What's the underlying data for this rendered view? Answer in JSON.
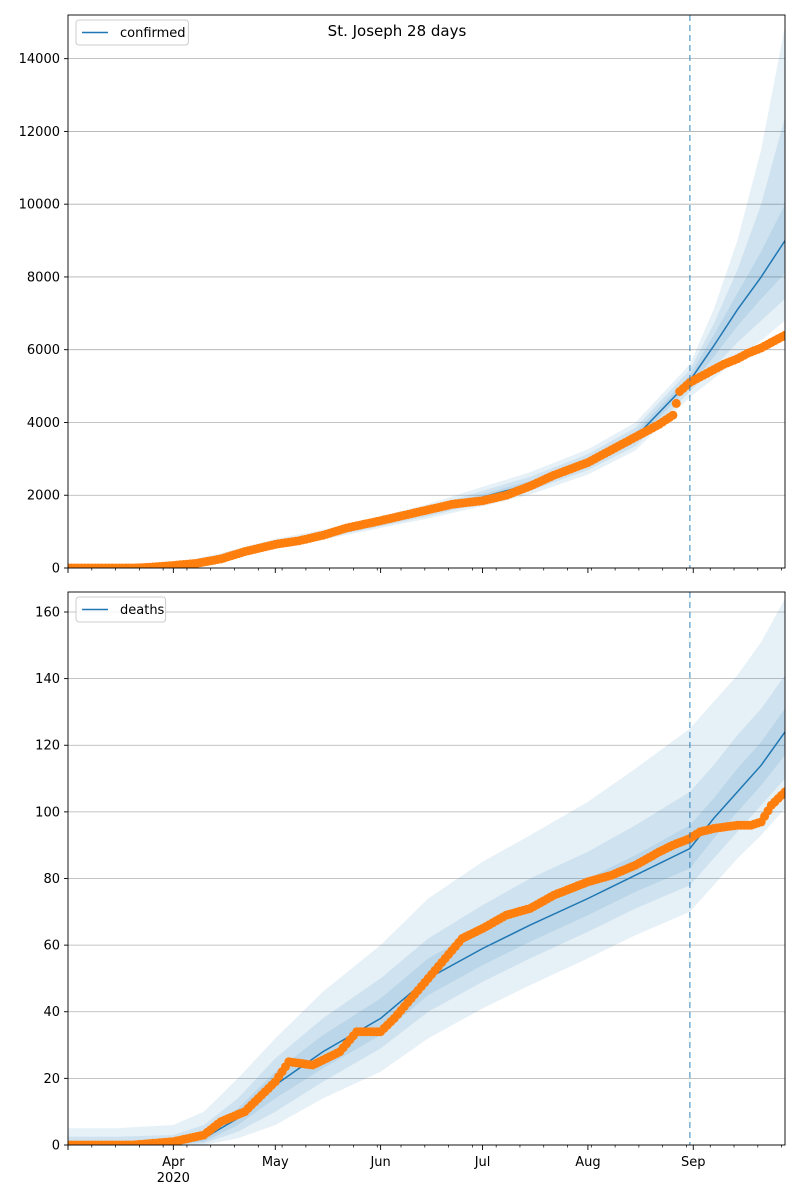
{
  "title": "St. Joseph 28 days",
  "colors": {
    "model": "#1f77b4",
    "observed": "#ff7f0e",
    "grid": "#b0b0b0",
    "band": "#1f77b4"
  },
  "x_axis": {
    "month_labels": [
      "Apr",
      "May",
      "Jun",
      "Jul",
      "Aug",
      "Sep"
    ],
    "year_label": "2020"
  },
  "chart_data": [
    {
      "type": "line",
      "title": "St. Joseph 28 days",
      "legend": {
        "entries": [
          "confirmed"
        ],
        "placement": "top-left"
      },
      "grid": "horizontal",
      "x_type": "date",
      "xlim": [
        "2020-03-01",
        "2020-09-28"
      ],
      "ylim": [
        0,
        15200
      ],
      "yticks": [
        0,
        2000,
        4000,
        6000,
        8000,
        10000,
        12000,
        14000
      ],
      "forecast_start": "2020-08-31",
      "model": {
        "name": "confirmed",
        "x": [
          "2020-03-01",
          "2020-03-15",
          "2020-04-01",
          "2020-04-15",
          "2020-05-01",
          "2020-05-15",
          "2020-06-01",
          "2020-06-15",
          "2020-07-01",
          "2020-07-15",
          "2020-08-01",
          "2020-08-15",
          "2020-08-31",
          "2020-09-07",
          "2020-09-14",
          "2020-09-21",
          "2020-09-28"
        ],
        "y": [
          0,
          5,
          80,
          300,
          650,
          900,
          1250,
          1550,
          1950,
          2300,
          2900,
          3600,
          5150,
          6100,
          7100,
          8000,
          9000
        ],
        "bands": [
          {
            "lower": [
              0,
              0,
              40,
              200,
              540,
              780,
              1100,
              1360,
              1700,
              2020,
              2570,
              3230,
              4700,
              5200,
              5750,
              6250,
              6800
            ],
            "upper": [
              0,
              15,
              120,
              410,
              800,
              1050,
              1420,
              1760,
              2230,
              2630,
              3260,
              4000,
              5600,
              7100,
              9000,
              11500,
              14900
            ]
          },
          {
            "lower": [
              0,
              0,
              55,
              240,
              580,
              820,
              1150,
              1420,
              1790,
              2120,
              2690,
              3350,
              4850,
              5500,
              6200,
              6800,
              7400
            ],
            "upper": [
              0,
              10,
              105,
              370,
              740,
              990,
              1360,
              1680,
              2120,
              2510,
              3130,
              3860,
              5450,
              6700,
              8200,
              10000,
              12400
            ]
          },
          {
            "lower": [
              0,
              0,
              65,
              270,
              610,
              860,
              1200,
              1490,
              1870,
              2210,
              2800,
              3470,
              5000,
              5800,
              6650,
              7400,
              8100
            ],
            "upper": [
              0,
              8,
              95,
              330,
              690,
              940,
              1300,
              1610,
              2030,
              2390,
              3000,
              3730,
              5300,
              6400,
              7550,
              8700,
              10000
            ]
          }
        ]
      },
      "observed": {
        "x": [
          "2020-03-01",
          "2020-03-20",
          "2020-03-25",
          "2020-04-01",
          "2020-04-08",
          "2020-04-15",
          "2020-04-22",
          "2020-05-01",
          "2020-05-08",
          "2020-05-15",
          "2020-05-22",
          "2020-06-01",
          "2020-06-08",
          "2020-06-15",
          "2020-06-22",
          "2020-07-01",
          "2020-07-08",
          "2020-07-15",
          "2020-07-22",
          "2020-08-01",
          "2020-08-08",
          "2020-08-15",
          "2020-08-22",
          "2020-08-26",
          "2020-08-28",
          "2020-08-31",
          "2020-09-03",
          "2020-09-07",
          "2020-09-10",
          "2020-09-14",
          "2020-09-17",
          "2020-09-21",
          "2020-09-24",
          "2020-09-28"
        ],
        "y": [
          0,
          0,
          20,
          70,
          130,
          250,
          450,
          650,
          750,
          900,
          1100,
          1300,
          1450,
          1600,
          1750,
          1850,
          2000,
          2250,
          2550,
          2900,
          3250,
          3600,
          3950,
          4200,
          4850,
          5100,
          5250,
          5450,
          5600,
          5750,
          5900,
          6050,
          6200,
          6400
        ]
      }
    },
    {
      "type": "line",
      "legend": {
        "entries": [
          "deaths"
        ],
        "placement": "top-left"
      },
      "grid": "horizontal",
      "x_type": "date",
      "xlim": [
        "2020-03-01",
        "2020-09-28"
      ],
      "ylim": [
        0,
        166
      ],
      "yticks": [
        0,
        20,
        40,
        60,
        80,
        100,
        120,
        140,
        160
      ],
      "forecast_start": "2020-08-31",
      "model": {
        "name": "deaths",
        "x": [
          "2020-03-01",
          "2020-03-15",
          "2020-04-01",
          "2020-04-10",
          "2020-04-20",
          "2020-05-01",
          "2020-05-15",
          "2020-06-01",
          "2020-06-15",
          "2020-07-01",
          "2020-07-15",
          "2020-08-01",
          "2020-08-15",
          "2020-08-31",
          "2020-09-07",
          "2020-09-14",
          "2020-09-21",
          "2020-09-28"
        ],
        "y": [
          0,
          0,
          0.5,
          2,
          8,
          18,
          28,
          38,
          50,
          59,
          66,
          74,
          81,
          89,
          98,
          106,
          114,
          124
        ],
        "bands": [
          {
            "lower": [
              0,
              0,
              0,
              0,
              2,
              6,
              14,
              22,
              32,
              41,
              48,
              56,
              63,
              70,
              78,
              86,
              93,
              101
            ],
            "upper": [
              5,
              5,
              6,
              10,
              20,
              32,
              46,
              60,
              74,
              85,
              93,
              103,
              113,
              125,
              133,
              141,
              151,
              164
            ]
          },
          {
            "lower": [
              0,
              0,
              0,
              0.5,
              4,
              10,
              19,
              29,
              40,
              49,
              56,
              64,
              71,
              78,
              86,
              94,
              102,
              110
            ],
            "upper": [
              2.5,
              2.5,
              3,
              6,
              14,
              26,
              38,
              50,
              62,
              72,
              80,
              88,
              96,
              106,
              114,
              123,
              131,
              141
            ]
          },
          {
            "lower": [
              0,
              0,
              0,
              1,
              6,
              14,
              23,
              33,
              45,
              54,
              61,
              69,
              76,
              83,
              92,
              100,
              108,
              117
            ],
            "upper": [
              1,
              1,
              1.5,
              4,
              11,
              22,
              33,
              44,
              56,
              65,
              72,
              80,
              87,
              96,
              104,
              113,
              121,
              131
            ]
          }
        ]
      },
      "observed": {
        "x": [
          "2020-03-01",
          "2020-03-20",
          "2020-04-01",
          "2020-04-10",
          "2020-04-15",
          "2020-04-22",
          "2020-04-26",
          "2020-05-01",
          "2020-05-05",
          "2020-05-12",
          "2020-05-20",
          "2020-05-25",
          "2020-06-01",
          "2020-06-05",
          "2020-06-10",
          "2020-06-15",
          "2020-06-20",
          "2020-06-25",
          "2020-07-01",
          "2020-07-08",
          "2020-07-15",
          "2020-07-22",
          "2020-08-01",
          "2020-08-08",
          "2020-08-15",
          "2020-08-22",
          "2020-08-26",
          "2020-08-31",
          "2020-09-03",
          "2020-09-07",
          "2020-09-14",
          "2020-09-18",
          "2020-09-21",
          "2020-09-24",
          "2020-09-28"
        ],
        "y": [
          0,
          0,
          1,
          3,
          7,
          10,
          14,
          19,
          25,
          24,
          28,
          34,
          34,
          38,
          44,
          50,
          56,
          62,
          65,
          69,
          71,
          75,
          79,
          81,
          84,
          88,
          90,
          92,
          94,
          95,
          96,
          96,
          97,
          102,
          106
        ]
      }
    }
  ]
}
